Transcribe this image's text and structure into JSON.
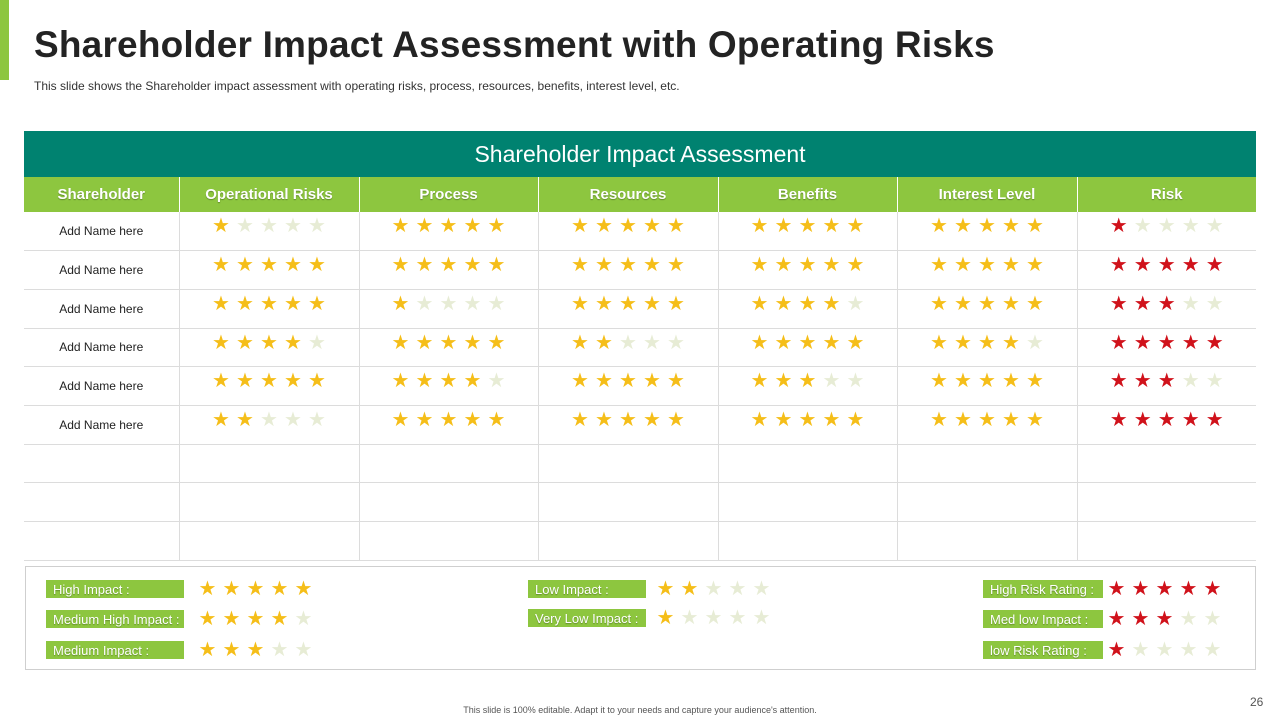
{
  "page": {
    "title": "Shareholder Impact Assessment with Operating Risks",
    "subtitle": "This slide shows the Shareholder  impact assessment with operating risks, process, resources, benefits, interest level, etc.",
    "footer": "This slide is 100% editable. Adapt it to your needs and capture your audience's attention.",
    "page_number": "26"
  },
  "colors": {
    "header_teal": "#008270",
    "header_green": "#8dc63f",
    "star_gold": "#f5be19",
    "star_red": "#d0121b",
    "star_empty": "#e7ecd5"
  },
  "table": {
    "heading": "Shareholder Impact Assessment",
    "columns": [
      "Shareholder",
      "Operational Risks",
      "Process",
      "Resources",
      "Benefits",
      "Interest Level",
      "Risk"
    ],
    "rows": [
      {
        "name": "Add Name here",
        "ratings": [
          1,
          5,
          5,
          5,
          5,
          1
        ]
      },
      {
        "name": "Add Name here",
        "ratings": [
          5,
          5,
          5,
          5,
          5,
          5
        ]
      },
      {
        "name": "Add Name here",
        "ratings": [
          5,
          1,
          5,
          4,
          5,
          3
        ]
      },
      {
        "name": "Add Name here",
        "ratings": [
          4,
          5,
          2,
          5,
          4,
          5
        ]
      },
      {
        "name": "Add Name here",
        "ratings": [
          5,
          4,
          5,
          3,
          5,
          3
        ]
      },
      {
        "name": "Add Name here",
        "ratings": [
          2,
          5,
          5,
          5,
          5,
          5
        ]
      }
    ],
    "empty_rows": 3,
    "max_stars": 5
  },
  "legend": [
    {
      "label": "High Impact :",
      "stars": 5,
      "color": "gold"
    },
    {
      "label": "Medium High Impact :",
      "stars": 4,
      "color": "gold"
    },
    {
      "label": "Medium Impact :",
      "stars": 3,
      "color": "gold"
    },
    {
      "label": "Low Impact :",
      "stars": 2,
      "color": "gold"
    },
    {
      "label": "Very Low Impact :",
      "stars": 1,
      "color": "gold"
    },
    {
      "label": "High Risk Rating :",
      "stars": 5,
      "color": "red"
    },
    {
      "label": "Med low Impact :",
      "stars": 3,
      "color": "red"
    },
    {
      "label": "low Risk Rating :",
      "stars": 1,
      "color": "red"
    }
  ]
}
